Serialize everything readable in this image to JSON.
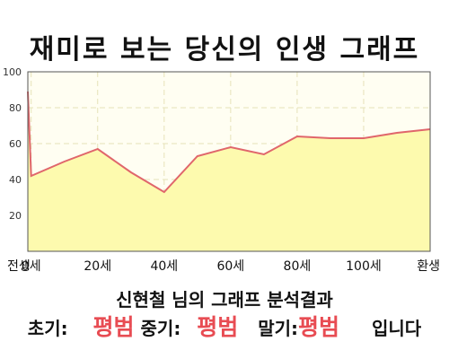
{
  "title": "재미로 보는 당신의 인생 그래프",
  "chart_data": {
    "type": "area",
    "x_labels": [
      "전생",
      "0세",
      "20세",
      "40세",
      "60세",
      "80세",
      "100세",
      "환생"
    ],
    "x": [
      -1,
      0,
      20,
      40,
      60,
      80,
      100,
      120
    ],
    "points": [
      {
        "x": -1,
        "y": 89
      },
      {
        "x": 0,
        "y": 42
      },
      {
        "x": 10,
        "y": 50
      },
      {
        "x": 20,
        "y": 57
      },
      {
        "x": 30,
        "y": 44
      },
      {
        "x": 40,
        "y": 33
      },
      {
        "x": 50,
        "y": 53
      },
      {
        "x": 60,
        "y": 58
      },
      {
        "x": 70,
        "y": 54
      },
      {
        "x": 80,
        "y": 64
      },
      {
        "x": 90,
        "y": 63
      },
      {
        "x": 100,
        "y": 63
      },
      {
        "x": 110,
        "y": 66
      },
      {
        "x": 120,
        "y": 68
      }
    ],
    "y_ticks": [
      20,
      40,
      60,
      80,
      100
    ],
    "ylim": [
      0,
      100
    ],
    "grid": true,
    "line_color": "#e0666b",
    "fill_color": "#fdfaae",
    "plot_background": "#fffef2"
  },
  "result": {
    "heading": "신현철 님의 그래프 분석결과",
    "early_label": "초기:",
    "early_value": "평범",
    "middle_label": "중기:",
    "middle_value": "평범",
    "late_label": "말기:",
    "late_value": "평범",
    "suffix": "입니다"
  },
  "colors": {
    "highlight": "#e84c53"
  }
}
